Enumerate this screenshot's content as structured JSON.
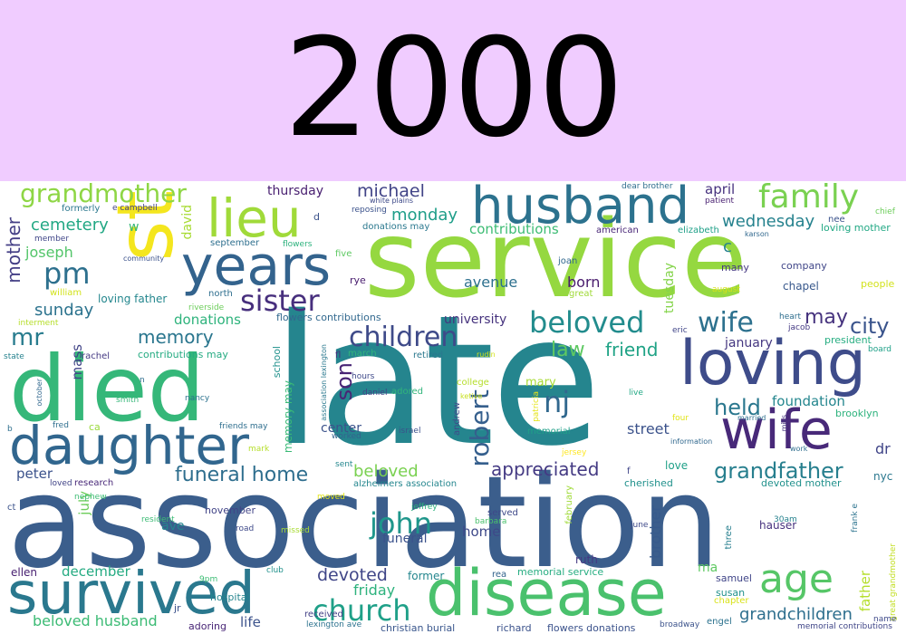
{
  "title": "2000",
  "words": [
    {
      "text": "association",
      "color": "#3b5e8c"
    },
    {
      "text": "late",
      "color": "#25858e"
    },
    {
      "text": "service",
      "color": "#95d840"
    },
    {
      "text": "died",
      "color": "#35b779"
    },
    {
      "text": "st",
      "color": "#f4e61e"
    },
    {
      "text": "loving",
      "color": "#3e4c8a"
    },
    {
      "text": "disease",
      "color": "#4ac16d"
    },
    {
      "text": "wife",
      "color": "#482979"
    },
    {
      "text": "daughter",
      "color": "#31668e"
    },
    {
      "text": "survived",
      "color": "#2a788e"
    },
    {
      "text": "husband",
      "color": "#2c728e"
    },
    {
      "text": "years",
      "color": "#33638d"
    },
    {
      "text": "lieu",
      "color": "#a0da39"
    },
    {
      "text": "family",
      "color": "#7ad151"
    },
    {
      "text": "age",
      "color": "#56c667"
    },
    {
      "text": "children",
      "color": "#3e4a89"
    },
    {
      "text": "beloved",
      "color": "#228c8d"
    },
    {
      "text": "wife",
      "color": "#2d718e"
    },
    {
      "text": "pm",
      "color": "#2d708e"
    },
    {
      "text": "sister",
      "color": "#472f7d"
    },
    {
      "text": "grandmother",
      "color": "#8ed645"
    },
    {
      "text": "grandfather",
      "color": "#277f8e"
    },
    {
      "text": "church",
      "color": "#1fa088"
    },
    {
      "text": "funeral home",
      "color": "#2e6e8e"
    },
    {
      "text": "john",
      "color": "#1f968b"
    },
    {
      "text": "robert",
      "color": "#355f8d"
    },
    {
      "text": "nj",
      "color": "#31688e"
    },
    {
      "text": "mr",
      "color": "#287c8e"
    },
    {
      "text": "memory",
      "color": "#2a768e"
    },
    {
      "text": "held",
      "color": "#2a778e"
    },
    {
      "text": "cemetery",
      "color": "#22a884"
    },
    {
      "text": "son",
      "color": "#482475"
    },
    {
      "text": "mother",
      "color": "#433e85"
    },
    {
      "text": "city",
      "color": "#3a548c"
    },
    {
      "text": "law",
      "color": "#5ec962"
    },
    {
      "text": "friend",
      "color": "#20a386"
    },
    {
      "text": "may",
      "color": "#46337e"
    },
    {
      "text": "devoted",
      "color": "#404688"
    },
    {
      "text": "friday",
      "color": "#2db27d"
    },
    {
      "text": "beloved husband",
      "color": "#3cbb75"
    },
    {
      "text": "grandchildren",
      "color": "#2e6f8e"
    },
    {
      "text": "appreciated",
      "color": "#443a83"
    },
    {
      "text": "sunday",
      "color": "#2c738e"
    },
    {
      "text": "monday",
      "color": "#1f9e89"
    },
    {
      "text": "michael",
      "color": "#414487"
    },
    {
      "text": "thursday",
      "color": "#481f70"
    },
    {
      "text": "wednesday",
      "color": "#26828e"
    },
    {
      "text": "joseph",
      "color": "#52c569"
    },
    {
      "text": "beloved",
      "color": "#7ad151"
    },
    {
      "text": "street",
      "color": "#3b528b"
    },
    {
      "text": "foundation",
      "color": "#24868e"
    },
    {
      "text": "contributions",
      "color": "#3dbc74"
    },
    {
      "text": "donations",
      "color": "#2eb37c"
    },
    {
      "text": "university",
      "color": "#46337e"
    },
    {
      "text": "avenue",
      "color": "#2d708e"
    },
    {
      "text": "born",
      "color": "#481b6d"
    },
    {
      "text": "april",
      "color": "#46327e"
    },
    {
      "text": "c",
      "color": "#26828e"
    },
    {
      "text": "mass",
      "color": "#414487"
    },
    {
      "text": "peter",
      "color": "#3b528b"
    },
    {
      "text": "dr",
      "color": "#404588"
    },
    {
      "text": "ave",
      "color": "#25858e"
    },
    {
      "text": "home",
      "color": "#3e4989"
    },
    {
      "text": "funeral",
      "color": "#3b528b"
    },
    {
      "text": "brother",
      "color": "#375a8c"
    },
    {
      "text": "tuesday",
      "color": "#84d44b"
    },
    {
      "text": "january",
      "color": "#453781"
    },
    {
      "text": "center",
      "color": "#3b528b"
    },
    {
      "text": "ma",
      "color": "#5ec962"
    },
    {
      "text": "life",
      "color": "#3b528b"
    },
    {
      "text": "december",
      "color": "#25ab82"
    },
    {
      "text": "july",
      "color": "#6ccd5a"
    },
    {
      "text": "father",
      "color": "#b5de2b"
    },
    {
      "text": "school",
      "color": "#21918c"
    },
    {
      "text": "memory may",
      "color": "#3aba76"
    },
    {
      "text": "david",
      "color": "#a8db34"
    },
    {
      "text": "mary",
      "color": "#a8db34"
    },
    {
      "text": "ruth",
      "color": "#443983"
    },
    {
      "text": "ellen",
      "color": "#482071"
    },
    {
      "text": "former",
      "color": "#24868e"
    },
    {
      "text": "loving father",
      "color": "#24878e"
    },
    {
      "text": "nyc",
      "color": "#2a778e"
    },
    {
      "text": "love",
      "color": "#1fa088"
    },
    {
      "text": "hauser",
      "color": "#46317e"
    },
    {
      "text": "brooklyn",
      "color": "#2db27d"
    },
    {
      "text": "susan",
      "color": "#21918c"
    },
    {
      "text": "samuel",
      "color": "#404588"
    },
    {
      "text": "chapel",
      "color": "#38588c"
    },
    {
      "text": "company",
      "color": "#404688"
    },
    {
      "text": "president",
      "color": "#26ad81"
    },
    {
      "text": "many",
      "color": "#453882"
    },
    {
      "text": "memorial service",
      "color": "#26ad81"
    },
    {
      "text": "devoted mother",
      "color": "#21918c"
    },
    {
      "text": "christian burial",
      "color": "#39568c"
    },
    {
      "text": "richard",
      "color": "#3b528b"
    },
    {
      "text": "flowers donations",
      "color": "#3b528b"
    },
    {
      "text": "research",
      "color": "#482878"
    },
    {
      "text": "alzheimers association",
      "color": "#24868e"
    },
    {
      "text": "flowers contributions",
      "color": "#31688e"
    },
    {
      "text": "contributions may",
      "color": "#25ab82"
    },
    {
      "text": "retired",
      "color": "#2a788e"
    },
    {
      "text": "cherished",
      "color": "#21918c"
    },
    {
      "text": "hospital",
      "color": "#25858e"
    },
    {
      "text": "received",
      "color": "#424086"
    },
    {
      "text": "adoring",
      "color": "#482576"
    },
    {
      "text": "november",
      "color": "#414487"
    },
    {
      "text": "served",
      "color": "#3e4989"
    },
    {
      "text": "september",
      "color": "#2e6f8e"
    },
    {
      "text": "north",
      "color": "#2e6e8e"
    },
    {
      "text": "march",
      "color": "#31b57b"
    },
    {
      "text": "rye",
      "color": "#481c6e"
    },
    {
      "text": "fl",
      "color": "#472c7a"
    },
    {
      "text": "american",
      "color": "#482677"
    },
    {
      "text": "elizabeth",
      "color": "#1fa088"
    },
    {
      "text": "donations may",
      "color": "#2a788e"
    },
    {
      "text": "five",
      "color": "#5ec962"
    },
    {
      "text": "joan",
      "color": "#31688e"
    },
    {
      "text": "member",
      "color": "#404688"
    },
    {
      "text": "w",
      "color": "#35b779"
    },
    {
      "text": "adored",
      "color": "#31b57b"
    },
    {
      "text": "college",
      "color": "#b5de2b"
    },
    {
      "text": "memorial",
      "color": "#1fa088"
    },
    {
      "text": "chapter",
      "color": "#d8e219"
    },
    {
      "text": "engel",
      "color": "#2c728e"
    },
    {
      "text": "jr",
      "color": "#3b528b"
    },
    {
      "text": "three",
      "color": "#277f8e"
    },
    {
      "text": "february",
      "color": "#a0da39"
    },
    {
      "text": "andrew",
      "color": "#3e4a89"
    },
    {
      "text": "nancy",
      "color": "#2c728e"
    },
    {
      "text": "daniel",
      "color": "#424086"
    },
    {
      "text": "rachel",
      "color": "#443983"
    },
    {
      "text": "william",
      "color": "#d2e21b"
    },
    {
      "text": "formerly",
      "color": "#2a778e"
    },
    {
      "text": "frank e",
      "color": "#2c738e"
    },
    {
      "text": "great grandmother",
      "color": "#c2df23"
    },
    {
      "text": "memorial contributions",
      "color": "#404688"
    },
    {
      "text": "name",
      "color": "#3e4989"
    },
    {
      "text": "broadway",
      "color": "#3b528b"
    },
    {
      "text": "lexington ave",
      "color": "#2c728e"
    },
    {
      "text": "rea",
      "color": "#33638d"
    },
    {
      "text": "club",
      "color": "#21918c"
    },
    {
      "text": "9pm",
      "color": "#3dbc74"
    },
    {
      "text": "f",
      "color": "#404588"
    },
    {
      "text": "ct",
      "color": "#3b528b"
    },
    {
      "text": "nephew",
      "color": "#3dbc74"
    },
    {
      "text": "resident",
      "color": "#3cbb75"
    },
    {
      "text": "road",
      "color": "#3e4989"
    },
    {
      "text": "missed",
      "color": "#a8db34"
    },
    {
      "text": "jeffrey",
      "color": "#2db27d"
    },
    {
      "text": "barbara",
      "color": "#4ac16d"
    },
    {
      "text": "june",
      "color": "#3e4989"
    },
    {
      "text": "30am",
      "color": "#26828e"
    },
    {
      "text": "moved",
      "color": "#e2e418"
    },
    {
      "text": "loved",
      "color": "#414487"
    },
    {
      "text": "sent",
      "color": "#24878e"
    },
    {
      "text": "mark",
      "color": "#b5de2b"
    },
    {
      "text": "friends may",
      "color": "#2e6e8e"
    },
    {
      "text": "fred",
      "color": "#2e6e8e"
    },
    {
      "text": "ca",
      "color": "#9bd93c"
    },
    {
      "text": "b",
      "color": "#2e6f8e"
    },
    {
      "text": "worked",
      "color": "#33638d"
    },
    {
      "text": "israel",
      "color": "#3b528b"
    },
    {
      "text": "patricia",
      "color": "#e5e419"
    },
    {
      "text": "jersey",
      "color": "#fde725"
    },
    {
      "text": "four",
      "color": "#e2e418"
    },
    {
      "text": "information",
      "color": "#31688e"
    },
    {
      "text": "work",
      "color": "#2e6e8e"
    },
    {
      "text": "married",
      "color": "#2e6e8e"
    },
    {
      "text": "miss",
      "color": "#46337e"
    },
    {
      "text": "live",
      "color": "#22a884"
    },
    {
      "text": "ketive",
      "color": "#c8e020"
    },
    {
      "text": "rudin",
      "color": "#d2e21b"
    },
    {
      "text": "hours",
      "color": "#3e4989"
    },
    {
      "text": "october",
      "color": "#31688e"
    },
    {
      "text": "smith",
      "color": "#35b779"
    },
    {
      "text": "association lexington",
      "color": "#2a788e"
    },
    {
      "text": "interment",
      "color": "#b5de2b"
    },
    {
      "text": "riverside",
      "color": "#6ccd5a"
    },
    {
      "text": "state",
      "color": "#26828e"
    },
    {
      "text": "community",
      "color": "#3b528b"
    },
    {
      "text": "flowers",
      "color": "#2db27d"
    },
    {
      "text": "reposing",
      "color": "#3b528b"
    },
    {
      "text": "white plains",
      "color": "#3e4a89"
    },
    {
      "text": "dear brother",
      "color": "#2e6e8e"
    },
    {
      "text": "patient",
      "color": "#481f70"
    },
    {
      "text": "nee",
      "color": "#3b528b"
    },
    {
      "text": "chief",
      "color": "#6ccd5a"
    },
    {
      "text": "loving mother",
      "color": "#22a884"
    },
    {
      "text": "karson",
      "color": "#31688e"
    },
    {
      "text": "august",
      "color": "#d8e219"
    },
    {
      "text": "great",
      "color": "#a0da39"
    },
    {
      "text": "people",
      "color": "#d2e21b"
    },
    {
      "text": "heart",
      "color": "#2e6e8e"
    },
    {
      "text": "jacob",
      "color": "#443983"
    },
    {
      "text": "eric",
      "color": "#404588"
    },
    {
      "text": "board",
      "color": "#1fa088"
    },
    {
      "text": "e campbell",
      "color": "#424086"
    },
    {
      "text": "n",
      "color": "#2e6e8e"
    },
    {
      "text": "d",
      "color": "#3b528b"
    }
  ]
}
